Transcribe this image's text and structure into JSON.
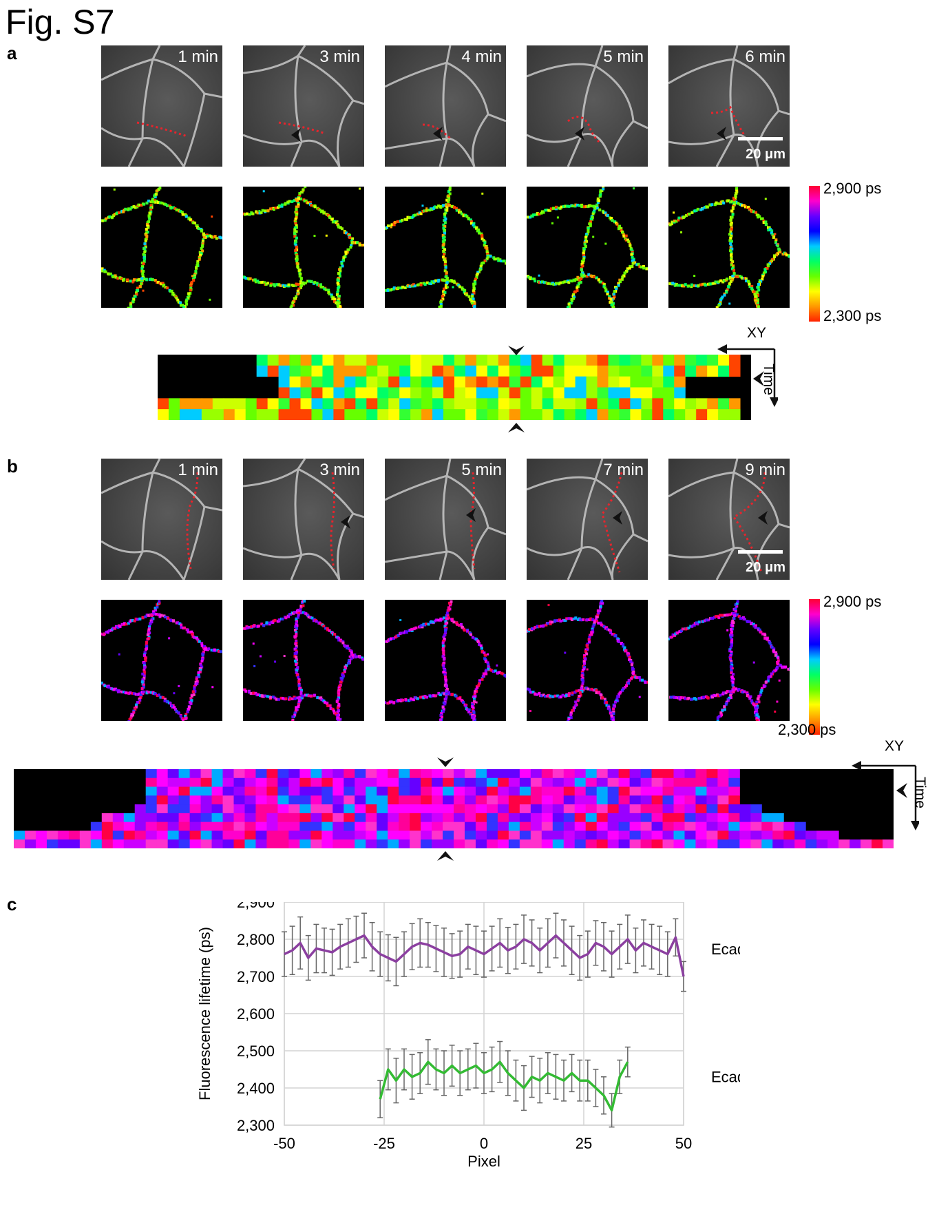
{
  "figure": {
    "title": "Fig. S7"
  },
  "panel_a": {
    "label": "a",
    "timepoints": [
      "1 min",
      "3 min",
      "4 min",
      "5 min",
      "6 min"
    ],
    "scale_bar": "20 μm",
    "colorbar": {
      "max_label": "2,900 ps",
      "min_label": "2,300 ps"
    },
    "kymograph_axes": {
      "x": "XY",
      "y": "Time"
    },
    "palette": "rainbow-mid"
  },
  "panel_b": {
    "label": "b",
    "timepoints": [
      "1 min",
      "3 min",
      "5 min",
      "7 min",
      "9 min"
    ],
    "scale_bar": "20 μm",
    "colorbar": {
      "max_label": "2,900 ps",
      "min_label": "2,300 ps"
    },
    "kymograph_axes": {
      "x": "XY",
      "y": "Time"
    },
    "palette": "magenta-blue"
  },
  "panel_c": {
    "label": "c",
    "chart_data": {
      "type": "line",
      "xlabel": "Pixel",
      "ylabel": "Fluorescence lifetime (ps)",
      "xlim": [
        -50,
        50
      ],
      "ylim": [
        2300,
        2900
      ],
      "xticks": [
        "-50",
        "-25",
        "0",
        "25",
        "50"
      ],
      "yticks": [
        "2,300",
        "2,400",
        "2,500",
        "2,600",
        "2,700",
        "2,800",
        "2,900"
      ],
      "grid": true,
      "series": [
        {
          "name": "EcadTI",
          "color": "#8b3fa0",
          "x": [
            -50,
            -48,
            -46,
            -44,
            -42,
            -40,
            -38,
            -36,
            -34,
            -32,
            -30,
            -28,
            -26,
            -24,
            -22,
            -20,
            -18,
            -16,
            -14,
            -12,
            -10,
            -8,
            -6,
            -4,
            -2,
            0,
            2,
            4,
            6,
            8,
            10,
            12,
            14,
            16,
            18,
            20,
            22,
            24,
            26,
            28,
            30,
            32,
            34,
            36,
            38,
            40,
            42,
            44,
            46,
            48,
            50
          ],
          "values": [
            2760,
            2770,
            2790,
            2750,
            2775,
            2770,
            2765,
            2780,
            2790,
            2800,
            2810,
            2780,
            2760,
            2750,
            2740,
            2760,
            2780,
            2790,
            2785,
            2775,
            2765,
            2755,
            2760,
            2780,
            2770,
            2760,
            2775,
            2790,
            2770,
            2780,
            2800,
            2790,
            2770,
            2790,
            2810,
            2790,
            2770,
            2750,
            2760,
            2790,
            2780,
            2760,
            2780,
            2800,
            2770,
            2790,
            2780,
            2770,
            2760,
            2805,
            2700
          ],
          "error": [
            60,
            65,
            70,
            60,
            65,
            60,
            62,
            60,
            65,
            62,
            60,
            65,
            60,
            62,
            65,
            60,
            62,
            65,
            60,
            62,
            65,
            60,
            62,
            60,
            65,
            62,
            60,
            65,
            62,
            60,
            65,
            62,
            60,
            65,
            60,
            62,
            65,
            60,
            62,
            60,
            65,
            62,
            60,
            65,
            60,
            62,
            60,
            65,
            60,
            50,
            40
          ]
        },
        {
          "name": "EcadTL",
          "color": "#33bb33",
          "x": [
            -26,
            -24,
            -22,
            -20,
            -18,
            -16,
            -14,
            -12,
            -10,
            -8,
            -6,
            -4,
            -2,
            0,
            2,
            4,
            6,
            8,
            10,
            12,
            14,
            16,
            18,
            20,
            22,
            24,
            26,
            28,
            30,
            32,
            34,
            36
          ],
          "values": [
            2370,
            2450,
            2420,
            2450,
            2430,
            2440,
            2470,
            2450,
            2440,
            2460,
            2440,
            2450,
            2460,
            2440,
            2450,
            2470,
            2440,
            2420,
            2400,
            2430,
            2420,
            2440,
            2430,
            2420,
            2440,
            2420,
            2420,
            2400,
            2380,
            2340,
            2430,
            2470
          ],
          "error": [
            50,
            55,
            60,
            55,
            60,
            55,
            60,
            55,
            60,
            55,
            60,
            55,
            60,
            55,
            60,
            55,
            60,
            55,
            60,
            55,
            60,
            55,
            60,
            55,
            50,
            55,
            55,
            50,
            50,
            45,
            45,
            40
          ]
        }
      ]
    }
  }
}
